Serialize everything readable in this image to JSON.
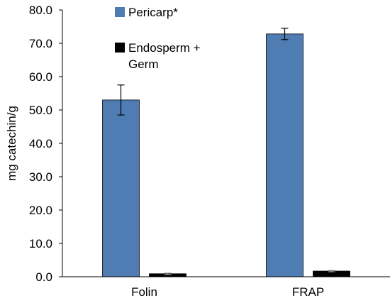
{
  "chart_data": {
    "type": "bar",
    "title": "",
    "xlabel": "",
    "ylabel": "mg catechin/g",
    "ylim": [
      0,
      80
    ],
    "yticks": [
      "0.0",
      "10.0",
      "20.0",
      "30.0",
      "40.0",
      "50.0",
      "60.0",
      "70.0",
      "80.0"
    ],
    "categories": [
      "Folin",
      "FRAP"
    ],
    "series": [
      {
        "name": "Pericarp*",
        "color": "#4f7db3",
        "values": [
          53.0,
          72.8
        ],
        "errors": [
          4.5,
          1.7
        ]
      },
      {
        "name": "Endosperm + Germ",
        "color": "#000000",
        "values": [
          0.9,
          1.7
        ],
        "errors": [
          0.2,
          0.2
        ]
      }
    ],
    "legend_position": "top-right",
    "grid": false
  }
}
